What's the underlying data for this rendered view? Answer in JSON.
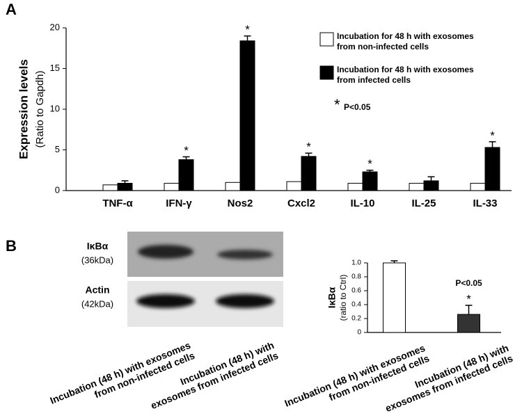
{
  "chart_data": [
    {
      "type": "bar",
      "panel": "A",
      "ylabel": "Expression levels",
      "ylabel_sub": "(Ratio to Gapdh)",
      "categories": [
        "TNF-α",
        "IFN-γ",
        "Nos2",
        "Cxcl2",
        "IL-10",
        "IL-25",
        "IL-33"
      ],
      "series": [
        {
          "name": "Incubation for 48 h with exosomes from non-infected cells",
          "color": "#ffffff",
          "values": [
            0.7,
            0.9,
            1.0,
            1.1,
            0.9,
            0.9,
            0.9
          ]
        },
        {
          "name": "Incubation for 48 h with exosomes from infected cells",
          "color": "#000000",
          "values": [
            0.9,
            3.8,
            18.4,
            4.2,
            2.3,
            1.2,
            5.3
          ],
          "errors": [
            0.3,
            0.35,
            0.6,
            0.4,
            0.2,
            0.5,
            0.7
          ],
          "markers": [
            null,
            "*",
            "*",
            "*",
            "*",
            null,
            "*"
          ]
        }
      ],
      "note_symbol": "*",
      "note": "P<0.05",
      "ylim": [
        0,
        20
      ],
      "yticks": [
        0,
        5,
        10,
        15,
        20
      ]
    },
    {
      "type": "bar",
      "panel": "B",
      "ylabel": "IκBα",
      "ylabel_sub": "(ratio to Ctrl)",
      "categories": [
        "Incubation (48 h) with exosomes from non-infected cells",
        "Incubation (48 h) with exosomes from infected cells"
      ],
      "series": [
        {
          "colors": [
            "#ffffff",
            "#333333"
          ],
          "values": [
            1.0,
            0.26
          ],
          "errors": [
            0.03,
            0.13
          ],
          "markers": [
            null,
            "*"
          ]
        }
      ],
      "note": "P<0.05",
      "ylim": [
        0,
        1
      ],
      "yticks": [
        0,
        0.2,
        0.4,
        0.6,
        0.8,
        {
          "value": 1,
          "label": "1.0"
        }
      ]
    }
  ],
  "blot": {
    "rows": [
      {
        "label": "IκBα",
        "size": "(36kDa)"
      },
      {
        "label": "Actin",
        "size": "(42kDa)"
      }
    ],
    "lanes": [
      "Incubation (48 h) with exosomes from non-infected cells",
      "Incubation (48 h) with exosomes from infected cells"
    ]
  }
}
